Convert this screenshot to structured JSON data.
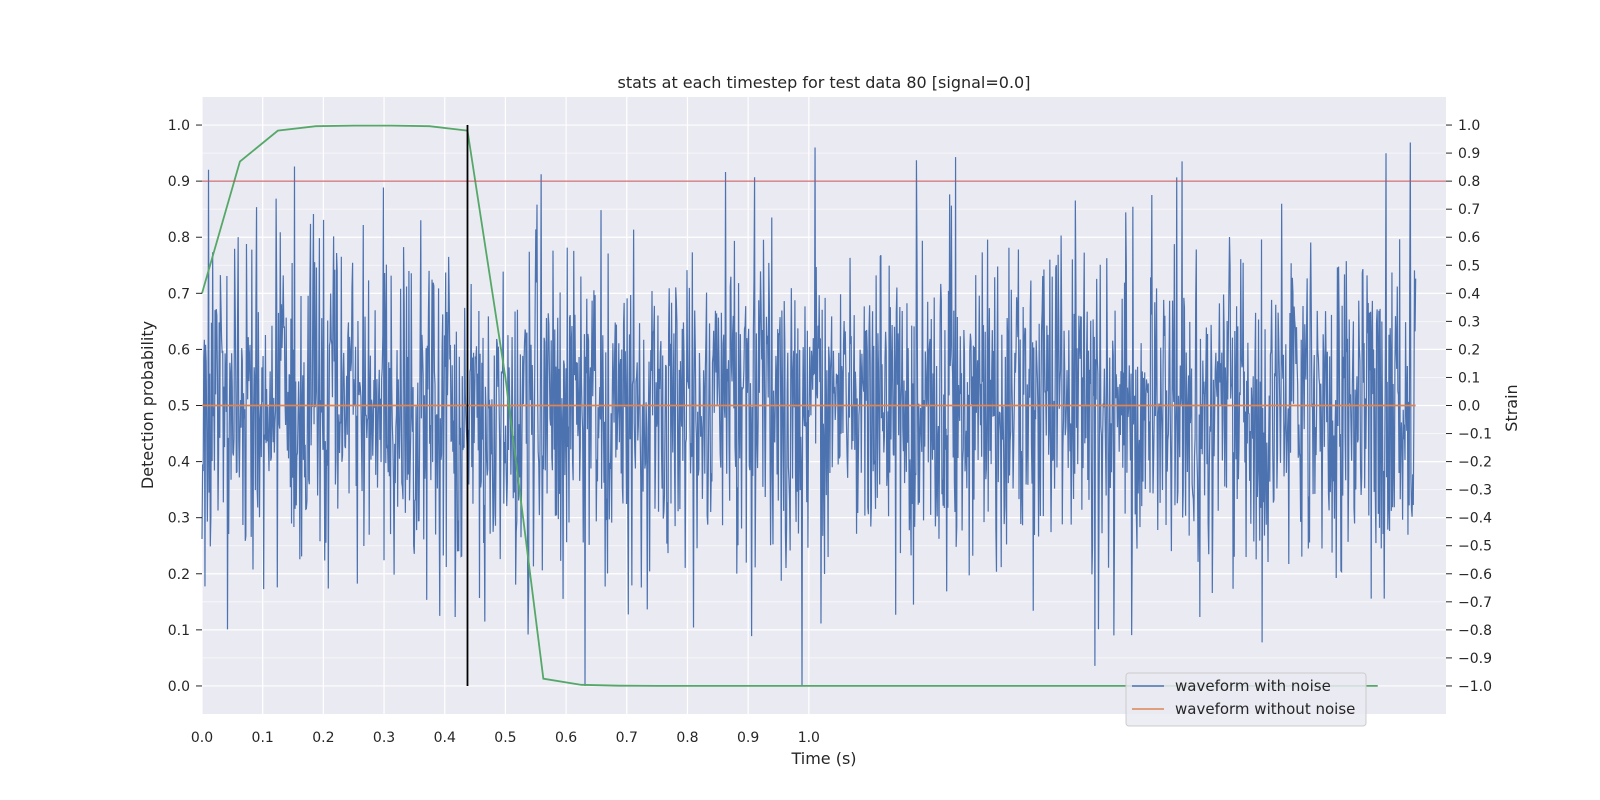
{
  "chart_data": {
    "type": "line",
    "title": "stats at each timestep for test data 80 [signal=0.0]",
    "xlabel": "Time (s)",
    "ylabel_left": "Detection probability",
    "ylabel_right": "Strain",
    "x_tick_labels": [
      "0.0",
      "0.1",
      "0.2",
      "0.3",
      "0.4",
      "0.5",
      "0.6",
      "0.7",
      "0.8",
      "0.9",
      "1.0"
    ],
    "xlim": [
      0.0,
      2.05
    ],
    "ylim_left": [
      -0.05,
      1.05
    ],
    "ylim_right": [
      -1.1,
      1.1
    ],
    "y_left_ticks": [
      0.0,
      0.1,
      0.2,
      0.3,
      0.4,
      0.5,
      0.6,
      0.7,
      0.8,
      0.9,
      1.0
    ],
    "y_left_tick_labels": [
      "0.0",
      "0.1",
      "0.2",
      "0.3",
      "0.4",
      "0.5",
      "0.6",
      "0.7",
      "0.8",
      "0.9",
      "1.0"
    ],
    "y_right_ticks": [
      1.0,
      0.9,
      0.8,
      0.7,
      0.6,
      0.5,
      0.4,
      0.3,
      0.2,
      0.1,
      0.0,
      -0.1,
      -0.2,
      -0.3,
      -0.4,
      -0.5,
      -0.6,
      -0.7,
      -0.8,
      -0.9,
      -1.0
    ],
    "y_right_tick_labels": [
      "1.0",
      "0.9",
      "0.8",
      "0.7",
      "0.6",
      "0.5",
      "0.4",
      "0.3",
      "0.2",
      "0.1",
      "0.0",
      "−0.1",
      "−0.2",
      "−0.3",
      "−0.4",
      "−0.5",
      "−0.6",
      "−0.7",
      "−0.8",
      "−0.9",
      "−1.0"
    ],
    "grid": true,
    "legend_position": "lower-right",
    "series": [
      {
        "name": "waveform with noise",
        "axis": "right",
        "color": "#4c72b0",
        "kind": "noise",
        "n_samples": 2048,
        "x_range": [
          0.0,
          2.0
        ],
        "approx_std": 0.3,
        "approx_range": [
          -1.0,
          1.0
        ]
      },
      {
        "name": "waveform without noise",
        "axis": "right",
        "color": "#dd8452",
        "x": [
          0.0,
          2.0
        ],
        "y": [
          0.0,
          0.0
        ]
      },
      {
        "axis": "left",
        "color": "#55a868",
        "x": [
          0.0,
          0.0625,
          0.125,
          0.1875,
          0.25,
          0.3125,
          0.375,
          0.4375,
          0.5,
          0.5625,
          0.625,
          0.6875,
          0.75,
          1.0,
          1.5,
          1.9375
        ],
        "y": [
          0.7,
          0.935,
          0.99,
          0.998,
          0.999,
          0.999,
          0.998,
          0.99,
          0.55,
          0.013,
          0.002,
          0.0005,
          0.0002,
          0.0001,
          0.0001,
          0.0001
        ]
      }
    ],
    "threshold_line": {
      "axis": "left",
      "value": 0.9,
      "color": "#c44e52"
    },
    "marker_line": {
      "x": 0.4375,
      "y_range": [
        0.0,
        1.0
      ],
      "color": "#000000"
    }
  }
}
